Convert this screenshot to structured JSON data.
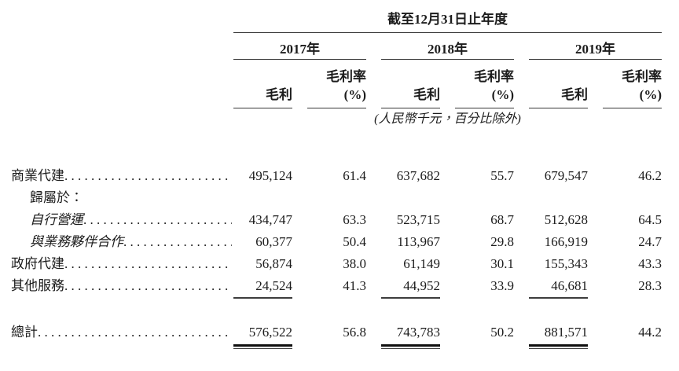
{
  "table": {
    "title": "截至12月31日止年度",
    "unit_note": "(人民幣千元，百分比除外)",
    "year_groups": [
      "2017年",
      "2018年",
      "2019年"
    ],
    "sub_headers": {
      "gross_profit": "毛利",
      "margin_line1": "毛利率",
      "margin_line2": "(%)"
    },
    "columns": [
      "2017 毛利",
      "2017 毛利率(%)",
      "2018 毛利",
      "2018 毛利率(%)",
      "2019 毛利",
      "2019 毛利率(%)"
    ],
    "rows": [
      {
        "label": "商業代建",
        "indent": 0,
        "italic": false,
        "leader": true,
        "underline": false,
        "values": [
          "495,124",
          "61.4",
          "637,682",
          "55.7",
          "679,547",
          "46.2"
        ]
      },
      {
        "label": "歸屬於：",
        "indent": 1,
        "italic": false,
        "leader": false,
        "underline": false,
        "values": [
          "",
          "",
          "",
          "",
          "",
          ""
        ]
      },
      {
        "label": "自行營運",
        "indent": 1,
        "italic": true,
        "leader": true,
        "underline": false,
        "values": [
          "434,747",
          "63.3",
          "523,715",
          "68.7",
          "512,628",
          "64.5"
        ]
      },
      {
        "label": "與業務夥伴合作",
        "indent": 1,
        "italic": true,
        "leader": true,
        "underline": false,
        "values": [
          "60,377",
          "50.4",
          "113,967",
          "29.8",
          "166,919",
          "24.7"
        ]
      },
      {
        "label": "政府代建",
        "indent": 0,
        "italic": false,
        "leader": true,
        "underline": false,
        "values": [
          "56,874",
          "38.0",
          "61,149",
          "30.1",
          "155,343",
          "43.3"
        ]
      },
      {
        "label": "其他服務",
        "indent": 0,
        "italic": false,
        "leader": true,
        "underline": true,
        "values": [
          "24,524",
          "41.3",
          "44,952",
          "33.9",
          "46,681",
          "28.3"
        ]
      }
    ],
    "total": {
      "label": "總計",
      "values": [
        "576,522",
        "56.8",
        "743,783",
        "50.2",
        "881,571",
        "44.2"
      ]
    }
  }
}
